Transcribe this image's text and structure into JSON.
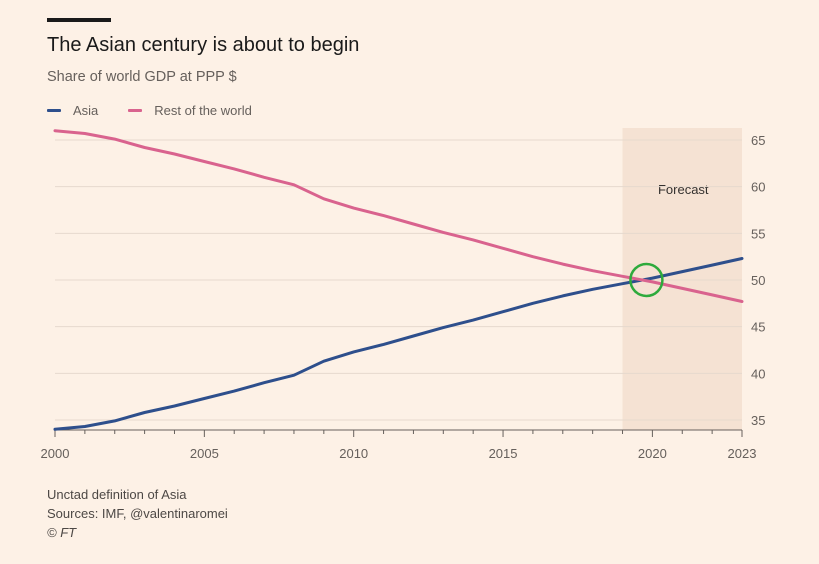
{
  "chart_data": {
    "type": "line",
    "title": "The Asian century is about to begin",
    "subtitle": "Share of world GDP at PPP $",
    "xlabel": "",
    "ylabel": "",
    "xlim": [
      2000,
      2023
    ],
    "ylim": [
      34,
      66
    ],
    "x_ticks": [
      2000,
      2005,
      2010,
      2015,
      2020,
      2023
    ],
    "y_ticks": [
      35,
      40,
      45,
      50,
      55,
      60,
      65
    ],
    "grid": true,
    "legend_position": "top-left",
    "x": [
      2000,
      2001,
      2002,
      2003,
      2004,
      2005,
      2006,
      2007,
      2008,
      2009,
      2010,
      2011,
      2012,
      2013,
      2014,
      2015,
      2016,
      2017,
      2018,
      2019,
      2020,
      2021,
      2022,
      2023
    ],
    "series": [
      {
        "name": "Asia",
        "color": "#2e4f8c",
        "values": [
          34.0,
          34.3,
          34.9,
          35.8,
          36.5,
          37.3,
          38.1,
          39.0,
          39.8,
          41.3,
          42.3,
          43.1,
          44.0,
          44.9,
          45.7,
          46.6,
          47.5,
          48.3,
          49.0,
          49.6,
          50.2,
          50.9,
          51.6,
          52.3
        ]
      },
      {
        "name": "Rest of the world",
        "color": "#d9638e",
        "values": [
          66.0,
          65.7,
          65.1,
          64.2,
          63.5,
          62.7,
          61.9,
          61.0,
          60.2,
          58.7,
          57.7,
          56.9,
          56.0,
          55.1,
          54.3,
          53.4,
          52.5,
          51.7,
          51.0,
          50.4,
          49.8,
          49.1,
          48.4,
          47.7
        ]
      }
    ],
    "shaded_region": {
      "label": "Forecast",
      "x_start": 2019,
      "x_end": 2023,
      "color": "#f5e2d3"
    },
    "annotation": {
      "type": "circle",
      "x": 2019.8,
      "y": 50.0,
      "color": "#2eaa3c"
    }
  },
  "footer": {
    "note": "Unctad definition of Asia",
    "sources": "Sources: IMF, @valentinaromei",
    "copyright": "© FT"
  }
}
